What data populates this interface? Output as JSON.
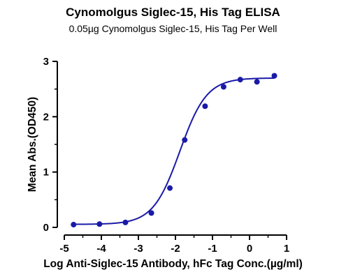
{
  "chart_data": {
    "type": "scatter",
    "title": "Cynomolgus Siglec-15, His Tag ELISA",
    "subtitle": "0.05µg Cynomolgus Siglec-15, His Tag Per Well",
    "xlabel": "Log Anti-Siglec-15 Antibody, hFc Tag Conc.(µg/ml)",
    "ylabel": "Mean Abs.(OD450)",
    "xlim": [
      -5,
      1
    ],
    "ylim": [
      0,
      3
    ],
    "xticks": [
      "-5",
      "-4",
      "-3",
      "-2",
      "-1",
      "0",
      "1"
    ],
    "yticks": [
      "0",
      "1",
      "2",
      "3"
    ],
    "grid": false,
    "color": "#1a1aa8",
    "series": [
      {
        "x": [
          -4.75,
          -4.05,
          -3.35,
          -2.65,
          -2.15,
          -1.75,
          -1.2,
          -0.7,
          -0.25,
          0.2,
          0.67
        ],
        "y": [
          0.05,
          0.06,
          0.09,
          0.26,
          0.71,
          1.58,
          2.19,
          2.54,
          2.67,
          2.63,
          2.74
        ]
      }
    ],
    "fit": {
      "bottom": 0.055,
      "top": 2.7,
      "logEC50": -1.88,
      "hill": 1.2
    }
  }
}
